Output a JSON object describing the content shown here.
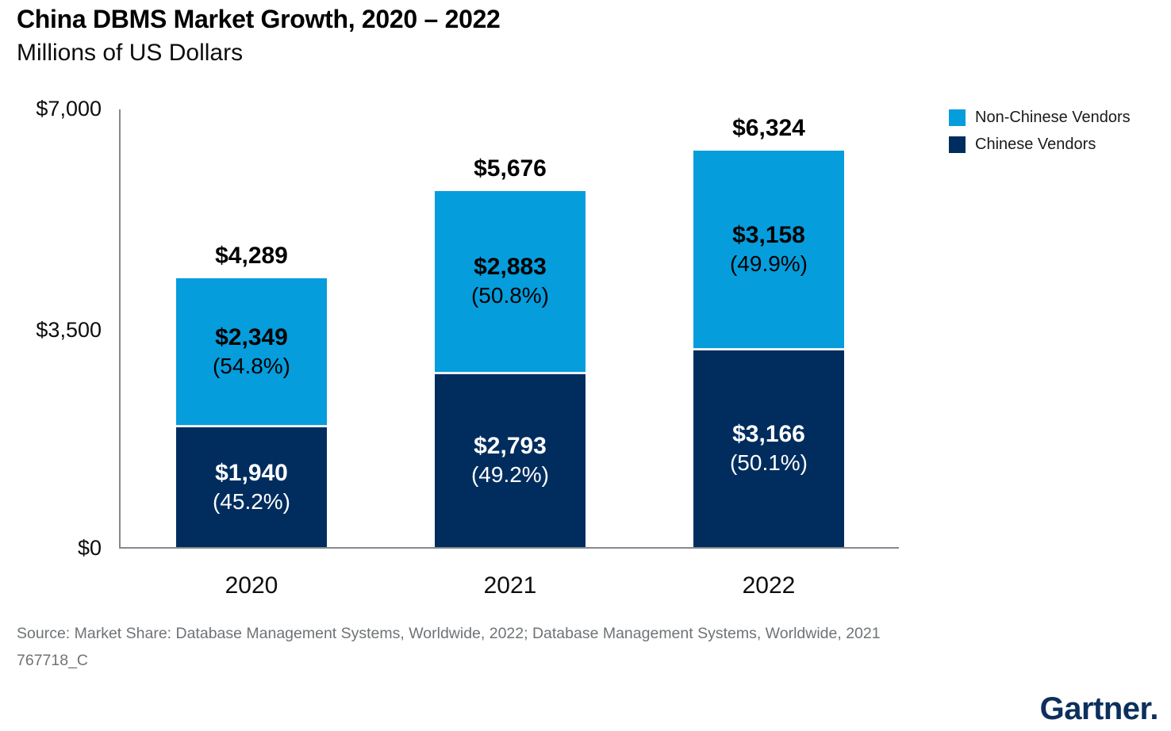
{
  "header": {
    "title": "China DBMS Market Growth, 2020 – 2022",
    "subtitle": "Millions of US Dollars"
  },
  "chart_data": {
    "type": "bar",
    "stacked": true,
    "title": "China DBMS Market Growth, 2020 – 2022",
    "ylabel": "Millions of US Dollars",
    "categories": [
      "2020",
      "2021",
      "2022"
    ],
    "series": [
      {
        "name": "Non-Chinese Vendors",
        "color": "#069DDC",
        "values": [
          2349,
          2883,
          3158
        ],
        "value_labels": [
          "$2,349",
          "$2,883",
          "$3,158"
        ],
        "shares_pct": [
          54.8,
          50.8,
          49.9
        ],
        "share_labels": [
          "(54.8%)",
          "(50.8%)",
          "(49.9%)"
        ]
      },
      {
        "name": "Chinese Vendors",
        "color": "#002D5E",
        "values": [
          1940,
          2793,
          3166
        ],
        "value_labels": [
          "$1,940",
          "$2,793",
          "$3,166"
        ],
        "shares_pct": [
          45.2,
          49.2,
          50.1
        ],
        "share_labels": [
          "(45.2%)",
          "(49.2%)",
          "(50.1%)"
        ]
      }
    ],
    "totals": [
      4289,
      5676,
      6324
    ],
    "total_labels": [
      "$4,289",
      "$5,676",
      "$6,324"
    ],
    "ylim": [
      0,
      7000
    ],
    "yticks": [
      0,
      3500,
      7000
    ],
    "ytick_labels": [
      "$0",
      "$3,500",
      "$7,000"
    ],
    "grid": false,
    "legend_position": "top-right"
  },
  "legend": {
    "items": [
      {
        "label": "Non-Chinese Vendors",
        "color": "#069DDC"
      },
      {
        "label": "Chinese Vendors",
        "color": "#002D5E"
      }
    ]
  },
  "footer": {
    "source_line": "Source: Market Share: Database Management Systems, Worldwide, 2022; Database Management Systems, Worldwide, 2021",
    "doc_id": "767718_C"
  },
  "branding": {
    "logo_text": "Gartner."
  }
}
